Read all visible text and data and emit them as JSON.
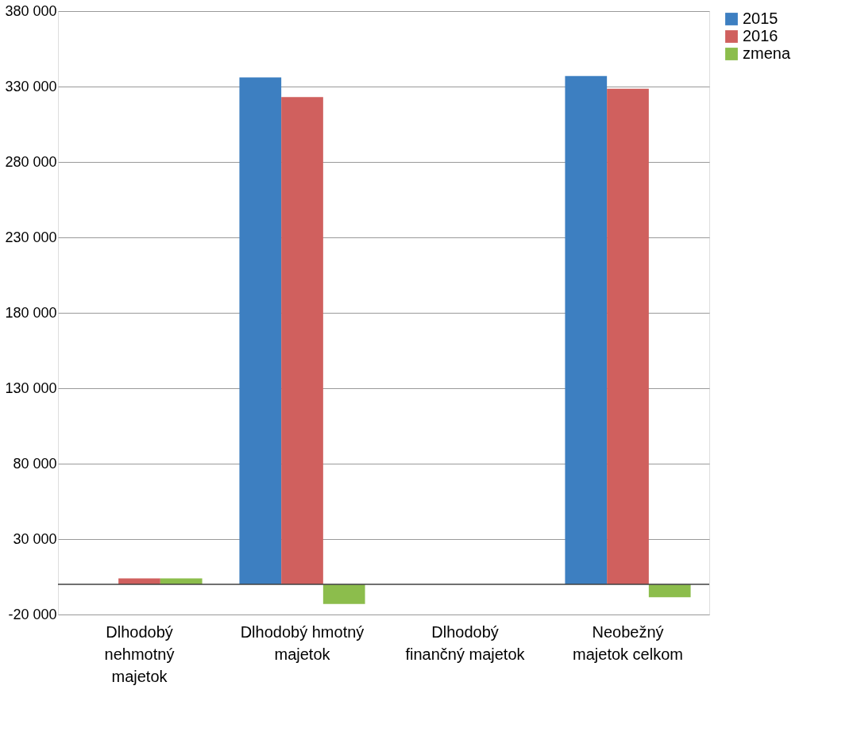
{
  "chart_data": {
    "type": "bar",
    "categories": [
      "Dlhodobý\nnehmotný\nmajetok",
      "Dlhodobý hmotný\nmajetok",
      "Dlhodobý\nfinančný majetok",
      "Neobežný\nmajetok celkom"
    ],
    "series": [
      {
        "name": "2015",
        "color": "#3d7fc1",
        "values": [
          0,
          336000,
          0,
          337000
        ]
      },
      {
        "name": "2016",
        "color": "#d0605e",
        "values": [
          4000,
          323000,
          0,
          328500
        ]
      },
      {
        "name": "zmena",
        "color": "#8cbd4c",
        "values": [
          4000,
          -13000,
          0,
          -8500
        ]
      }
    ],
    "ylim": [
      -20000,
      380000
    ],
    "yticks": [
      {
        "value": -20000,
        "label": "-20 000"
      },
      {
        "value": 30000,
        "label": "30 000"
      },
      {
        "value": 80000,
        "label": "80 000"
      },
      {
        "value": 130000,
        "label": "130 000"
      },
      {
        "value": 180000,
        "label": "180 000"
      },
      {
        "value": 230000,
        "label": "230 000"
      },
      {
        "value": 280000,
        "label": "280 000"
      },
      {
        "value": 330000,
        "label": "330 000"
      },
      {
        "value": 380000,
        "label": "380 000"
      }
    ],
    "ref_lines": [
      {
        "axis": "y",
        "value": 0,
        "color": "#404040"
      }
    ],
    "grid": "y",
    "legend": "right"
  }
}
